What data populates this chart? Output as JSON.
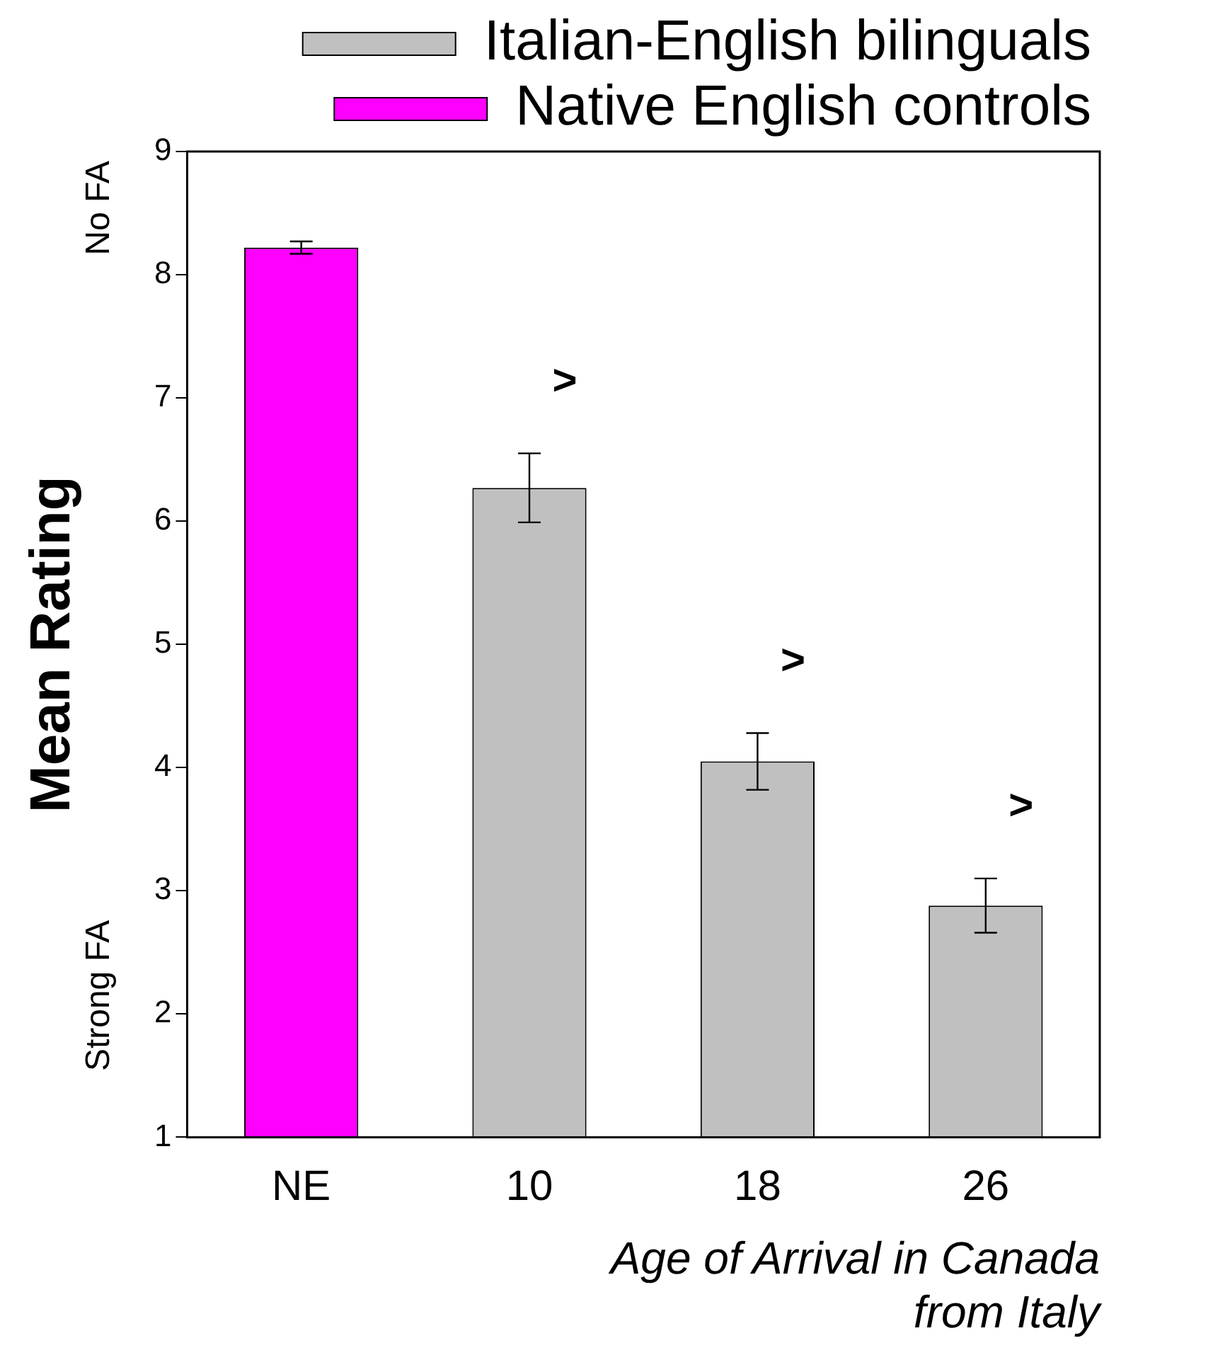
{
  "chart_data": {
    "type": "bar",
    "categories": [
      "NE",
      "10",
      "18",
      "26"
    ],
    "series": [
      {
        "name": "Italian-English bilinguals",
        "color": "#c0c0c0",
        "values": [
          null,
          6.27,
          4.05,
          2.88
        ],
        "errors": [
          null,
          0.28,
          0.23,
          0.22
        ]
      },
      {
        "name": "Native English controls",
        "color": "#ff00ff",
        "values": [
          8.22,
          null,
          null,
          null
        ],
        "errors": [
          0.05,
          null,
          null,
          null
        ]
      }
    ],
    "ylabel": "Mean Rating",
    "xlabel": "Age of Arrival in Canada from Italy",
    "ylim": [
      1,
      9
    ],
    "yticks": [
      1,
      2,
      3,
      4,
      5,
      6,
      7,
      8,
      9
    ],
    "grid": false,
    "legend": "top right",
    "annotations": [
      "No FA",
      "Strong FA",
      ">",
      ">",
      ">"
    ]
  }
}
